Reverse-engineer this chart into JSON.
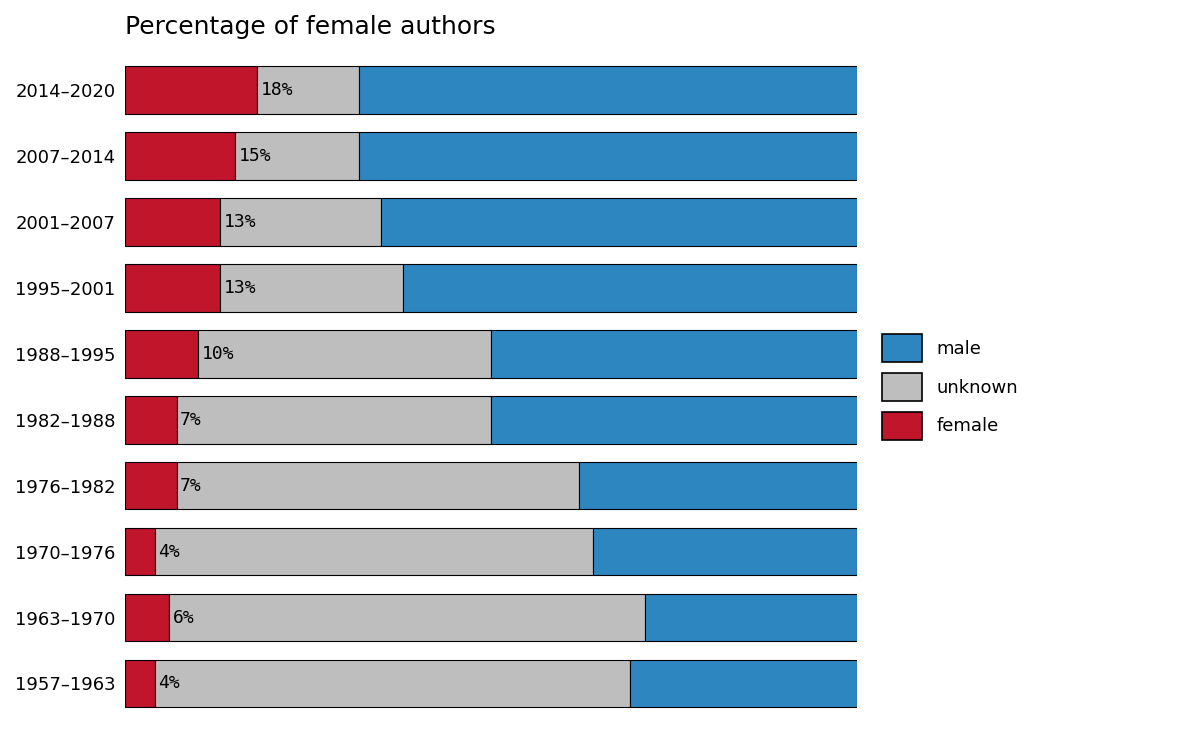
{
  "periods": [
    "2014–2020",
    "2007–2014",
    "2001–2007",
    "1995–2001",
    "1988–1995",
    "1982–1988",
    "1976–1982",
    "1970–1976",
    "1963–1970",
    "1957–1963"
  ],
  "female": [
    18,
    15,
    13,
    13,
    10,
    7,
    7,
    4,
    6,
    4
  ],
  "unknown": [
    14,
    17,
    22,
    25,
    40,
    43,
    55,
    60,
    65,
    65
  ],
  "male": [
    68,
    68,
    65,
    62,
    50,
    50,
    38,
    36,
    29,
    31
  ],
  "colors": {
    "female": "#C0152A",
    "unknown": "#BEBEBE",
    "male": "#2E86C1"
  },
  "title": "Percentage of female authors",
  "title_fontsize": 18,
  "tick_fontsize": 13,
  "label_fontsize": 13,
  "background_color": "#FFFFFF"
}
